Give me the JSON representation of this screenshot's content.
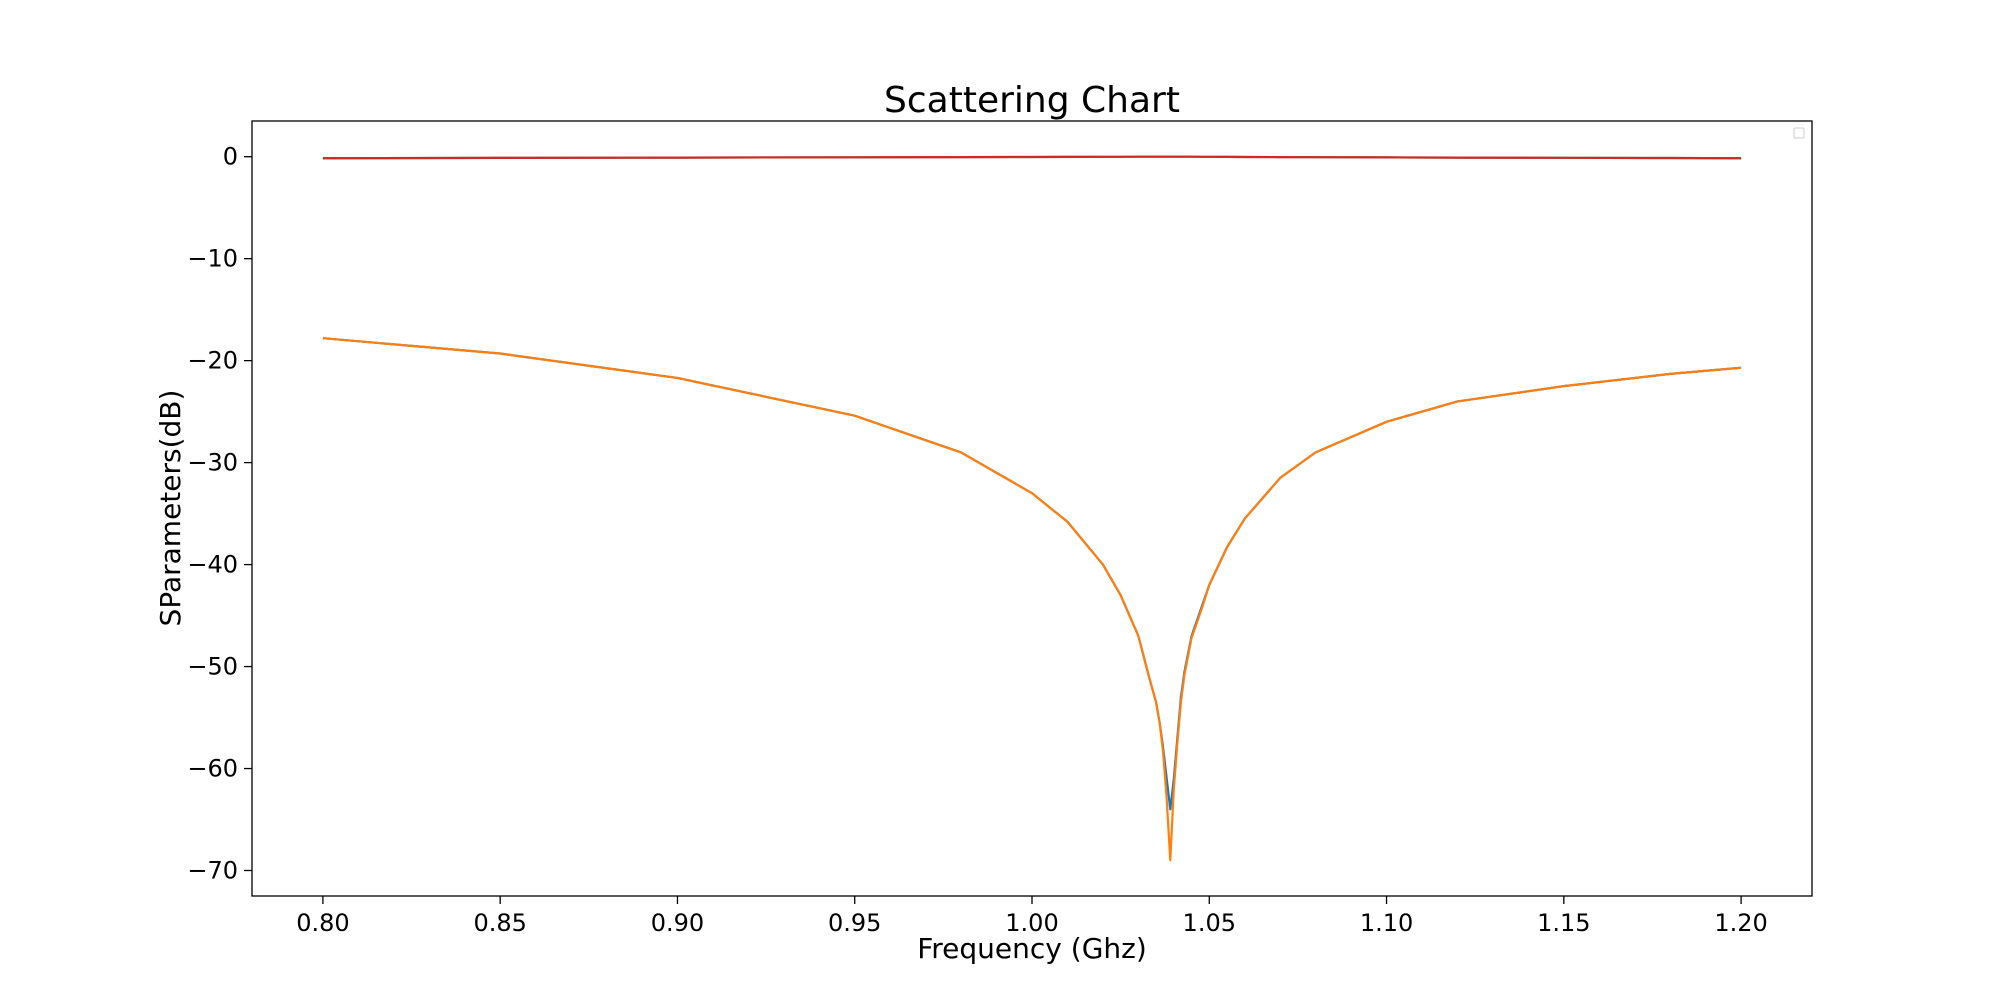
{
  "chart_data": {
    "type": "line",
    "title": "Scattering Chart",
    "xlabel": "Frequency (Ghz)",
    "ylabel": "SParameters(dB)",
    "xlim": [
      0.78,
      1.22
    ],
    "ylim": [
      -72.5,
      3.5
    ],
    "xticks": [
      0.8,
      0.85,
      0.9,
      0.95,
      1.0,
      1.05,
      1.1,
      1.15,
      1.2
    ],
    "xtick_labels": [
      "0.80",
      "0.85",
      "0.90",
      "0.95",
      "1.00",
      "1.05",
      "1.10",
      "1.15",
      "1.20"
    ],
    "yticks": [
      0,
      -10,
      -20,
      -30,
      -40,
      -50,
      -60,
      -70
    ],
    "ytick_labels": [
      "0",
      "−10",
      "−20",
      "−30",
      "−40",
      "−50",
      "−60",
      "−70"
    ],
    "grid": false,
    "legend": {
      "placement": "top-right",
      "entries": []
    },
    "x": [
      0.8,
      0.85,
      0.9,
      0.95,
      0.98,
      1.0,
      1.01,
      1.02,
      1.025,
      1.03,
      1.033,
      1.035,
      1.036,
      1.037,
      1.038,
      1.039,
      1.04,
      1.041,
      1.042,
      1.043,
      1.045,
      1.048,
      1.05,
      1.055,
      1.06,
      1.07,
      1.08,
      1.1,
      1.12,
      1.15,
      1.18,
      1.2
    ],
    "series": [
      {
        "color": "#1f77b4",
        "values": [
          -17.8,
          -19.3,
          -21.7,
          -25.4,
          -29.0,
          -33.0,
          -35.8,
          -40.0,
          -43.0,
          -47.0,
          -51.0,
          -53.5,
          -55.5,
          -58.0,
          -61.0,
          -64.0,
          -61.0,
          -57.0,
          -53.0,
          -50.5,
          -47.0,
          -44.0,
          -42.0,
          -38.3,
          -35.5,
          -31.5,
          -29.0,
          -26.0,
          -24.0,
          -22.5,
          -21.3,
          -20.7
        ]
      },
      {
        "color": "#ff7f0e",
        "values": [
          -17.8,
          -19.3,
          -21.7,
          -25.4,
          -29.0,
          -33.0,
          -35.8,
          -40.0,
          -43.0,
          -47.0,
          -51.0,
          -53.5,
          -55.5,
          -58.5,
          -63.0,
          -69.0,
          -62.0,
          -57.5,
          -53.5,
          -50.8,
          -47.2,
          -44.2,
          -42.0,
          -38.3,
          -35.5,
          -31.5,
          -29.0,
          -26.0,
          -24.0,
          -22.5,
          -21.3,
          -20.7
        ]
      },
      {
        "color": "#2ca02c",
        "values": [
          -0.15,
          -0.12,
          -0.09,
          -0.06,
          -0.04,
          -0.03,
          -0.02,
          -0.01,
          -0.01,
          0.0,
          0.0,
          0.0,
          0.0,
          0.0,
          0.0,
          0.0,
          0.0,
          0.0,
          0.0,
          0.0,
          0.0,
          -0.01,
          -0.01,
          -0.02,
          -0.03,
          -0.04,
          -0.05,
          -0.07,
          -0.09,
          -0.11,
          -0.13,
          -0.15
        ]
      },
      {
        "color": "#d62728",
        "values": [
          -0.15,
          -0.12,
          -0.09,
          -0.06,
          -0.04,
          -0.03,
          -0.02,
          -0.01,
          -0.01,
          0.0,
          0.0,
          0.0,
          0.0,
          0.0,
          0.0,
          0.0,
          0.0,
          0.0,
          0.0,
          0.0,
          0.0,
          -0.01,
          -0.01,
          -0.02,
          -0.03,
          -0.04,
          -0.05,
          -0.07,
          -0.09,
          -0.11,
          -0.13,
          -0.15
        ]
      }
    ]
  }
}
